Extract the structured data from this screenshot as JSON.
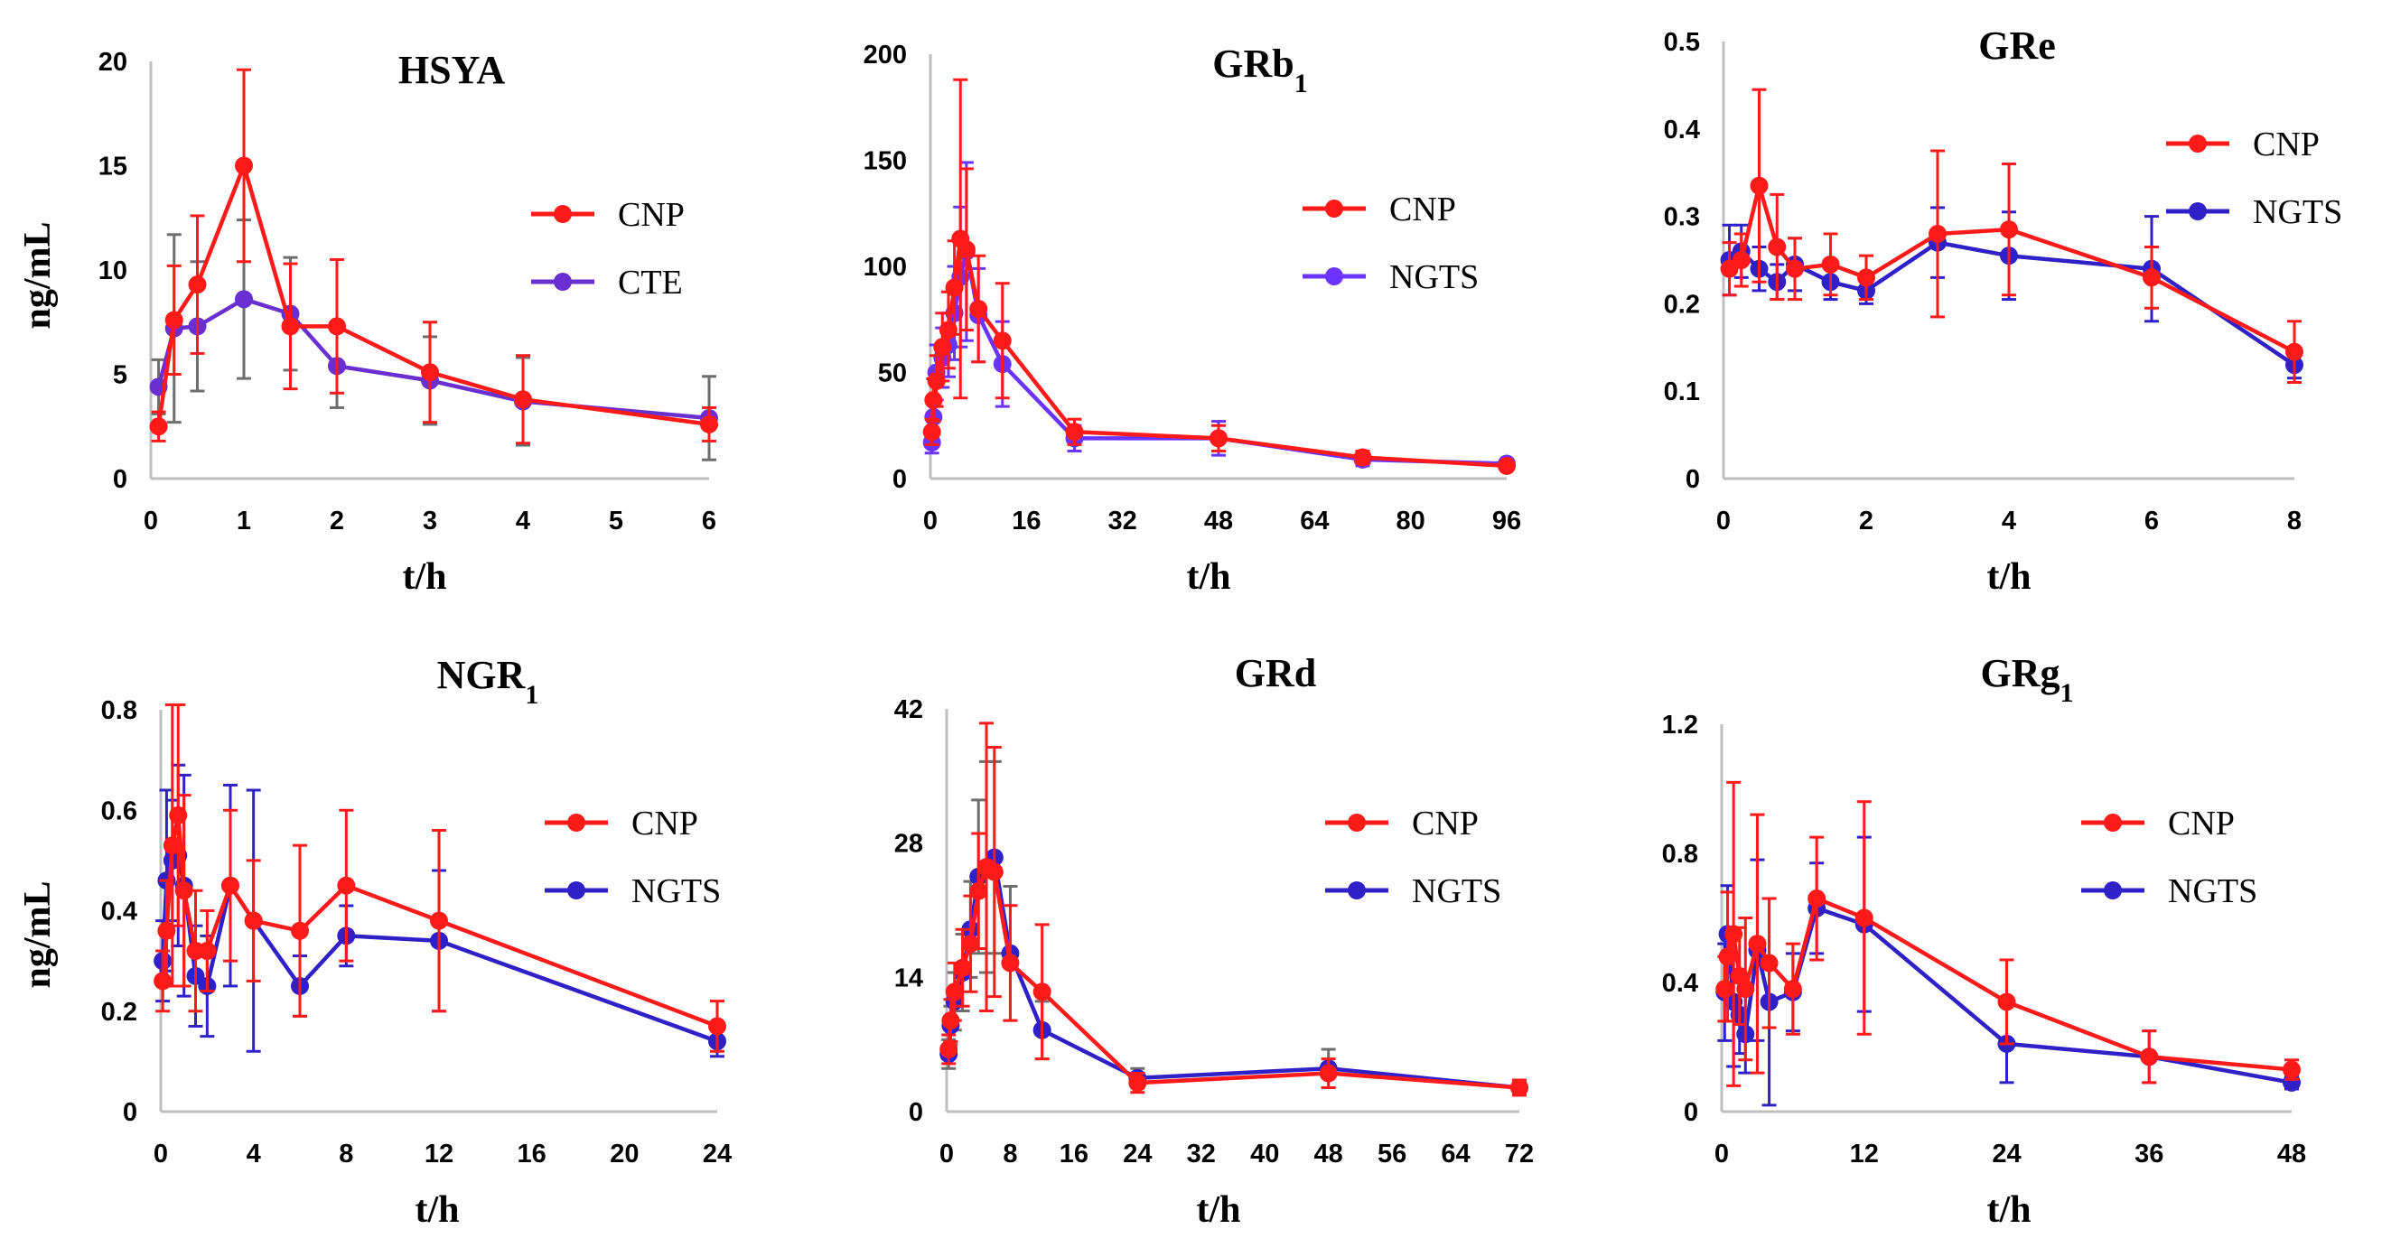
{
  "colors": {
    "CNP": "#ff1a1a",
    "CTE": "#6a2fd0",
    "NGTS_top": "#6a33ff",
    "NGTS": "#3020c8",
    "errbar_gray": "#6e6e6e"
  },
  "chart_data": [
    {
      "type": "line",
      "title": "HSYA",
      "title_sub": "",
      "xlabel": "t/h",
      "ylabel": "ng/mL",
      "xlim": [
        0,
        6
      ],
      "ylim": [
        0,
        20
      ],
      "xticks": [
        0,
        1,
        2,
        3,
        4,
        5,
        6
      ],
      "yticks": [
        0,
        5,
        10,
        15,
        20
      ],
      "legend": "right",
      "series": [
        {
          "name": "CNP",
          "color_key": "CNP",
          "x": [
            0.083,
            0.25,
            0.5,
            1,
            1.5,
            2,
            3,
            4,
            6
          ],
          "y": [
            2.5,
            7.6,
            9.3,
            15.0,
            7.3,
            7.3,
            5.1,
            3.8,
            2.6
          ],
          "err": [
            0.7,
            2.6,
            3.3,
            4.6,
            3.0,
            3.2,
            2.4,
            2.1,
            0.8
          ]
        },
        {
          "name": "CTE",
          "color_key": "CTE",
          "err_color_key": "errbar_gray",
          "x": [
            0.083,
            0.25,
            0.5,
            1,
            1.5,
            2,
            3,
            4,
            6
          ],
          "y": [
            4.4,
            7.2,
            7.3,
            8.6,
            7.9,
            5.4,
            4.7,
            3.7,
            2.9
          ],
          "err": [
            1.3,
            4.5,
            3.1,
            3.8,
            2.7,
            2.0,
            2.1,
            2.1,
            2.0
          ]
        }
      ]
    },
    {
      "type": "line",
      "title": "GRb",
      "title_sub": "1",
      "xlabel": "t/h",
      "ylabel": "",
      "xlim": [
        0,
        96
      ],
      "ylim": [
        0,
        200
      ],
      "xticks": [
        0,
        16,
        32,
        48,
        64,
        80,
        96
      ],
      "yticks": [
        0,
        50,
        100,
        150,
        200
      ],
      "legend": "right",
      "series": [
        {
          "name": "CNP",
          "color_key": "CNP",
          "x": [
            0.25,
            0.5,
            1,
            2,
            3,
            4,
            5,
            6,
            8,
            12,
            24,
            48,
            72,
            96
          ],
          "y": [
            22,
            37,
            46,
            62,
            70,
            90,
            113,
            108,
            80,
            65,
            22,
            19,
            10,
            6
          ],
          "err": [
            6,
            10,
            12,
            16,
            18,
            22,
            75,
            38,
            25,
            27,
            6,
            6,
            3,
            2
          ]
        },
        {
          "name": "NGTS",
          "color_key": "NGTS_top",
          "x": [
            0.25,
            0.5,
            1,
            2,
            3,
            4,
            5,
            6,
            8,
            12,
            24,
            48,
            72,
            96
          ],
          "y": [
            17,
            29,
            50,
            57,
            63,
            78,
            95,
            107,
            77,
            54,
            19,
            19,
            9,
            7
          ],
          "err": [
            5,
            8,
            13,
            14,
            15,
            22,
            33,
            42,
            22,
            20,
            6,
            8,
            3,
            2
          ]
        }
      ]
    },
    {
      "type": "line",
      "title": "GRe",
      "title_sub": "",
      "xlabel": "t/h",
      "ylabel": "",
      "xlim": [
        0,
        8
      ],
      "ylim": [
        0,
        0.5
      ],
      "xticks": [
        0,
        2,
        4,
        6,
        8
      ],
      "yticks": [
        0,
        0.1,
        0.2,
        0.3,
        0.4,
        0.5
      ],
      "legend": "right",
      "series": [
        {
          "name": "CNP",
          "color_key": "CNP",
          "x": [
            0.083,
            0.25,
            0.5,
            0.75,
            1,
            1.5,
            2,
            3,
            4,
            6,
            8
          ],
          "y": [
            0.24,
            0.25,
            0.335,
            0.265,
            0.24,
            0.245,
            0.23,
            0.28,
            0.285,
            0.23,
            0.145
          ],
          "err": [
            0.03,
            0.03,
            0.11,
            0.06,
            0.035,
            0.035,
            0.025,
            0.095,
            0.075,
            0.035,
            0.035
          ]
        },
        {
          "name": "NGTS",
          "color_key": "NGTS",
          "x": [
            0.083,
            0.25,
            0.5,
            0.75,
            1,
            1.5,
            2,
            3,
            4,
            6,
            8
          ],
          "y": [
            0.25,
            0.26,
            0.24,
            0.225,
            0.245,
            0.225,
            0.215,
            0.27,
            0.255,
            0.24,
            0.13
          ],
          "err": [
            0.04,
            0.03,
            0.025,
            0.02,
            0.03,
            0.02,
            0.015,
            0.04,
            0.05,
            0.06,
            0.015
          ]
        }
      ]
    },
    {
      "type": "line",
      "title": "NGR",
      "title_sub": "1",
      "xlabel": "t/h",
      "ylabel": "ng/mL",
      "xlim": [
        0,
        24
      ],
      "ylim": [
        0,
        0.8
      ],
      "xticks": [
        0,
        4,
        8,
        12,
        16,
        20,
        24
      ],
      "yticks": [
        0,
        0.2,
        0.4,
        0.6,
        0.8
      ],
      "legend": "right",
      "series": [
        {
          "name": "CNP",
          "color_key": "CNP",
          "x": [
            0.083,
            0.25,
            0.5,
            0.75,
            1,
            1.5,
            2,
            3,
            4,
            6,
            8,
            12,
            24
          ],
          "y": [
            0.26,
            0.36,
            0.53,
            0.59,
            0.44,
            0.32,
            0.32,
            0.45,
            0.38,
            0.36,
            0.45,
            0.38,
            0.17
          ],
          "err": [
            0.06,
            0.1,
            0.28,
            0.22,
            0.19,
            0.12,
            0.08,
            0.15,
            0.12,
            0.17,
            0.15,
            0.18,
            0.05
          ]
        },
        {
          "name": "NGTS",
          "color_key": "NGTS",
          "x": [
            0.083,
            0.25,
            0.5,
            0.75,
            1,
            1.5,
            2,
            3,
            4,
            6,
            8,
            12,
            24
          ],
          "y": [
            0.3,
            0.46,
            0.5,
            0.51,
            0.45,
            0.27,
            0.25,
            0.45,
            0.38,
            0.25,
            0.35,
            0.34,
            0.14
          ],
          "err": [
            0.08,
            0.18,
            0.12,
            0.18,
            0.22,
            0.1,
            0.1,
            0.2,
            0.26,
            0.06,
            0.06,
            0.14,
            0.03
          ]
        }
      ]
    },
    {
      "type": "line",
      "title": "GRd",
      "title_sub": "",
      "xlabel": "t/h",
      "ylabel": "",
      "xlim": [
        0,
        72
      ],
      "ylim": [
        0,
        42
      ],
      "xticks": [
        0,
        8,
        16,
        24,
        32,
        40,
        48,
        56,
        64,
        72
      ],
      "yticks": [
        0,
        14,
        28,
        42
      ],
      "legend": "right",
      "series": [
        {
          "name": "CNP",
          "color_key": "CNP",
          "x": [
            0.25,
            0.5,
            1,
            2,
            3,
            4,
            5,
            6,
            8,
            12,
            24,
            48,
            72
          ],
          "y": [
            6.5,
            9.5,
            12.5,
            15,
            17.5,
            23,
            25.5,
            25,
            15.5,
            12.5,
            3,
            4,
            2.5
          ],
          "err": [
            1.5,
            2.2,
            3,
            4,
            5,
            6,
            15,
            13,
            6,
            7,
            1,
            1.5,
            0.8
          ]
        },
        {
          "name": "NGTS",
          "color_key": "NGTS",
          "err_color_key": "errbar_gray",
          "x": [
            0.25,
            0.5,
            1,
            2,
            3,
            4,
            5,
            6,
            8,
            12,
            24,
            48,
            72
          ],
          "y": [
            6,
            9,
            11.5,
            14.5,
            19,
            24.5,
            25.5,
            26.5,
            16.5,
            8.5,
            3.5,
            4.5,
            2.5
          ],
          "err": [
            1.5,
            2,
            3,
            4,
            5,
            8,
            11,
            10,
            7,
            3,
            1,
            2,
            0.7
          ]
        }
      ]
    },
    {
      "type": "line",
      "title": "GRg",
      "title_sub": "1",
      "xlabel": "t/h",
      "ylabel": "",
      "xlim": [
        0,
        48
      ],
      "ylim": [
        0,
        1.2
      ],
      "xticks": [
        0,
        12,
        24,
        36,
        48
      ],
      "yticks": [
        0,
        0.4,
        0.8,
        1.2
      ],
      "legend": "right",
      "series": [
        {
          "name": "CNP",
          "color_key": "CNP",
          "x": [
            0.25,
            0.5,
            1,
            1.5,
            2,
            3,
            4,
            6,
            8,
            12,
            24,
            36,
            48
          ],
          "y": [
            0.38,
            0.48,
            0.55,
            0.42,
            0.38,
            0.52,
            0.46,
            0.38,
            0.66,
            0.6,
            0.34,
            0.17,
            0.13
          ],
          "err": [
            0.1,
            0.2,
            0.47,
            0.15,
            0.22,
            0.4,
            0.2,
            0.14,
            0.19,
            0.36,
            0.13,
            0.08,
            0.03
          ]
        },
        {
          "name": "NGTS",
          "color_key": "NGTS",
          "x": [
            0.25,
            0.5,
            1,
            1.5,
            2,
            3,
            4,
            6,
            8,
            12,
            24,
            36,
            48
          ],
          "y": [
            0.37,
            0.55,
            0.34,
            0.3,
            0.24,
            0.5,
            0.34,
            0.37,
            0.63,
            0.58,
            0.21,
            0.17,
            0.09
          ],
          "err": [
            0.15,
            0.15,
            0.2,
            0.12,
            0.12,
            0.28,
            0.32,
            0.12,
            0.14,
            0.27,
            0.12,
            0.08,
            0.02
          ]
        }
      ]
    }
  ]
}
